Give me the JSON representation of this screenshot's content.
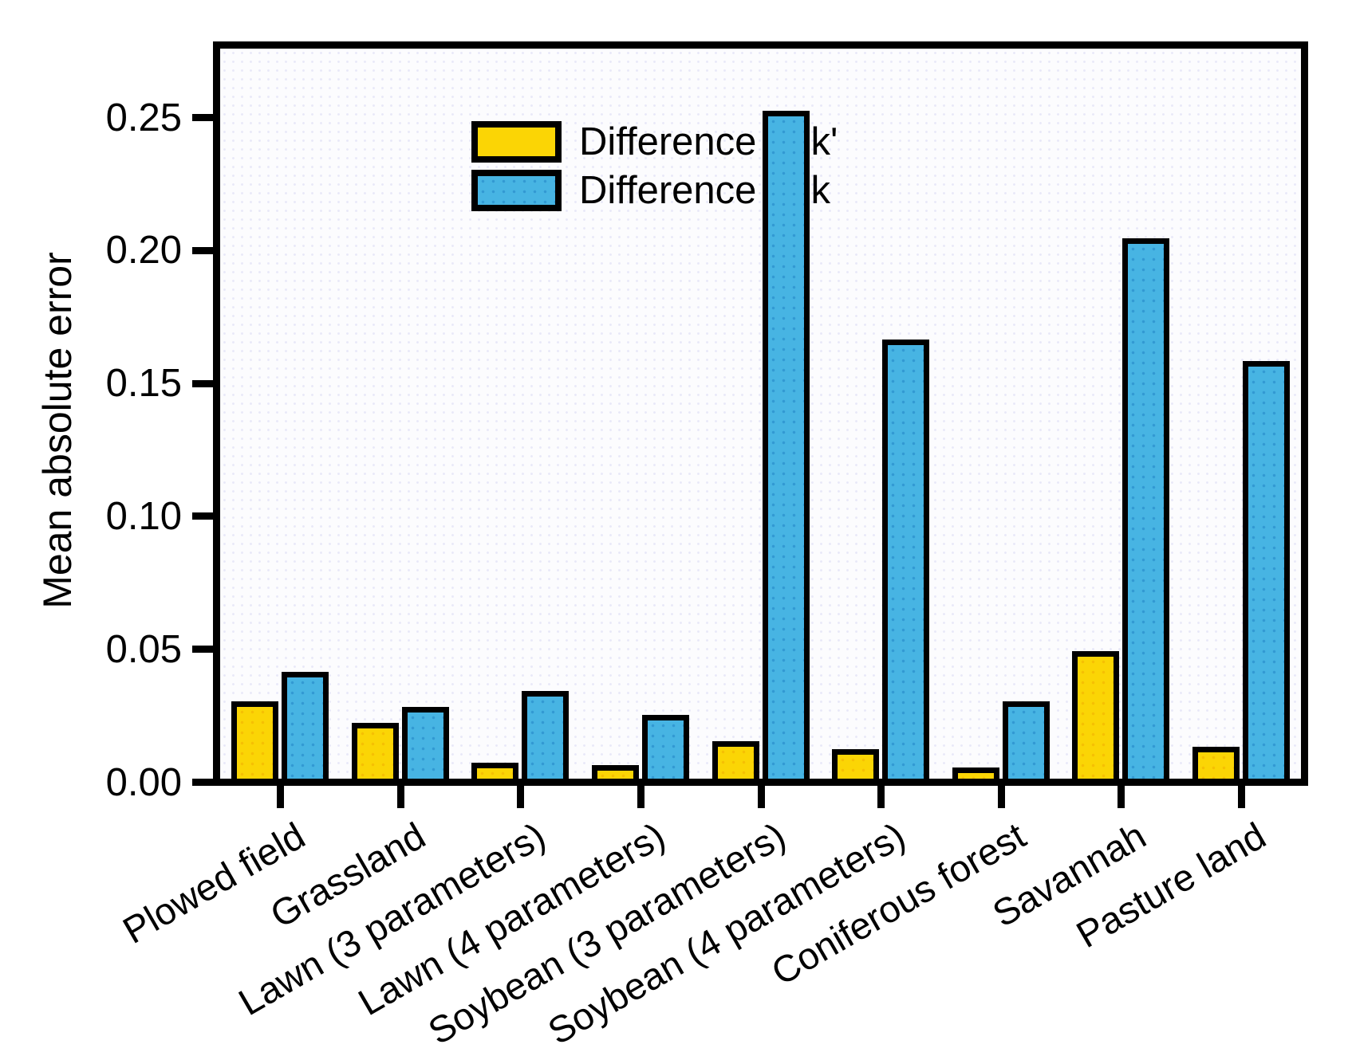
{
  "chart_data": {
    "type": "bar",
    "title": "",
    "ylabel": "Mean absolute error",
    "xlabel": "",
    "grid": false,
    "legend_position": "top-left",
    "ylim": [
      0,
      0.275
    ],
    "yticks": [
      "0.00",
      "0.05",
      "0.10",
      "0.15",
      "0.20",
      "0.25"
    ],
    "ytick_values": [
      0,
      0.05,
      0.1,
      0.15,
      0.2,
      0.25
    ],
    "categories": [
      "Plowed field",
      "Grassland",
      "Lawn (3 parameters)",
      "Lawn (4 parameters)",
      "Soybean (3 parameters)",
      "Soybean (4 parameters)",
      "Coniferous forest",
      "Savannah",
      "Pasture land"
    ],
    "series": [
      {
        "name": "Difference of k'",
        "color": "#fbd505",
        "values": [
          0.027,
          0.019,
          0.004,
          0.003,
          0.012,
          0.009,
          0.002,
          0.046,
          0.01
        ]
      },
      {
        "name": "Difference of k",
        "color": "#47b4e3",
        "values": [
          0.038,
          0.025,
          0.031,
          0.022,
          0.249,
          0.163,
          0.027,
          0.201,
          0.155
        ]
      }
    ]
  }
}
